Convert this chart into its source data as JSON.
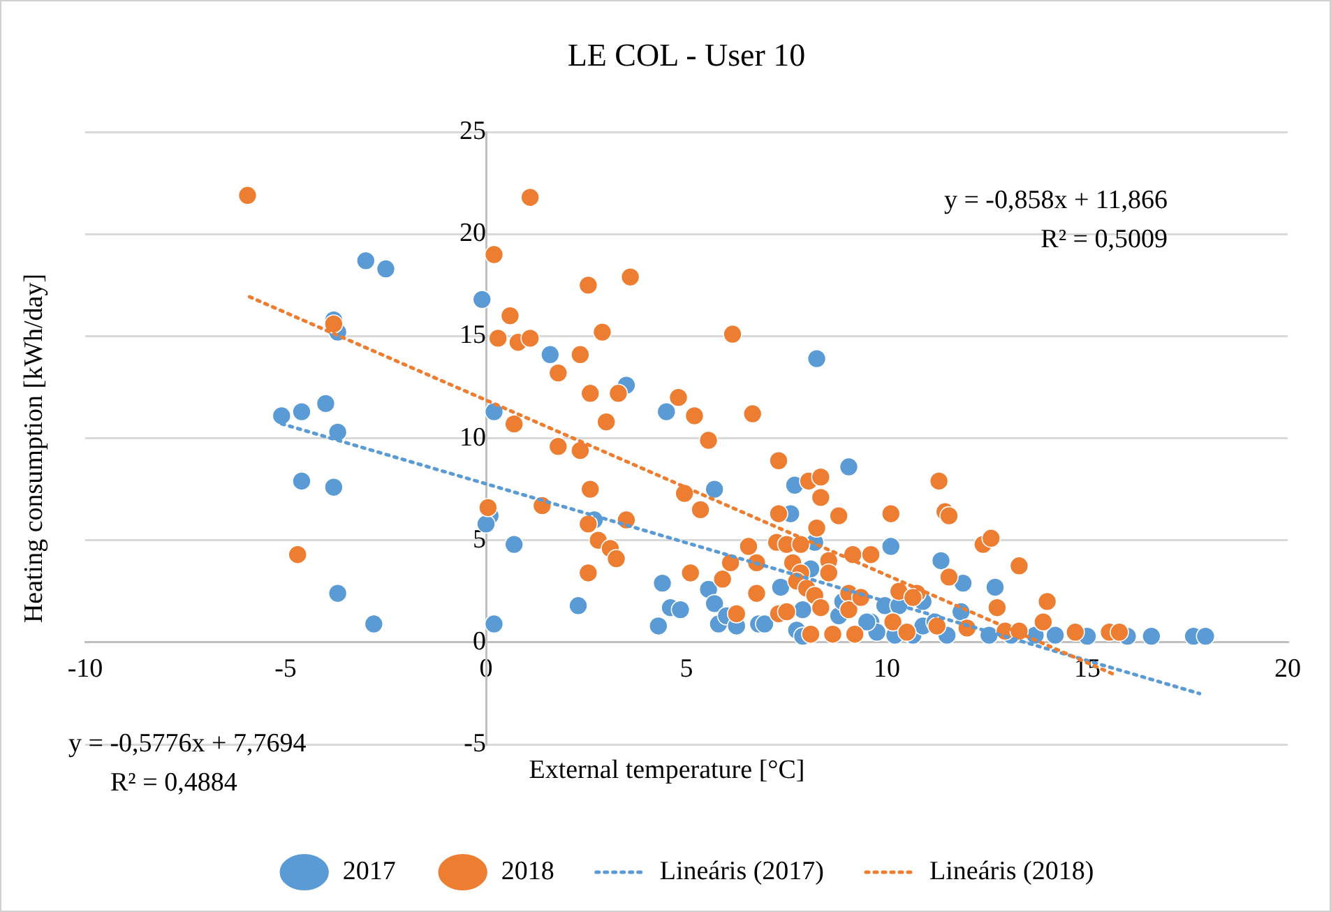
{
  "chart_data": {
    "type": "scatter",
    "title": "LE COL - User 10",
    "xlabel": "External temperature [°C]",
    "ylabel": "Heating consumption [kWh/day]",
    "xlim": [
      -10,
      20
    ],
    "xticks": [
      -10,
      -5,
      0,
      5,
      10,
      15,
      20
    ],
    "ylim": [
      -5,
      25
    ],
    "yticks": [
      -5,
      0,
      5,
      10,
      15,
      20,
      25
    ],
    "grid": "y",
    "legend": "bottom",
    "annotations": [
      "y = -0,858x + 11,866",
      "R² = 0,5009",
      "y = -0,5776x + 7,7694",
      "R² = 0,4884"
    ],
    "series": [
      {
        "name": "2017",
        "type": "scatter",
        "marker": "circle",
        "color": "#5b9bd5",
        "x": [
          -5.1,
          -4.6,
          -4.0,
          -3.7,
          -4.6,
          -3.8,
          -3.7,
          -2.8,
          -3.0,
          -2.5,
          -3.8,
          -3.7,
          -0.1,
          0.2,
          0.1,
          0.0,
          0.2,
          0.7,
          1.6,
          3.5,
          2.3,
          2.7,
          4.5,
          5.7,
          8.25,
          9.05,
          7.7,
          7.6,
          8.2,
          10.1,
          4.4,
          4.6,
          4.85,
          4.3,
          5.55,
          5.7,
          5.8,
          6.0,
          6.25,
          7.35,
          7.9,
          8.1,
          6.8,
          6.95,
          7.75,
          7.9,
          8.8,
          8.9,
          9.6,
          9.75,
          9.95,
          11.35,
          11.9,
          12.7,
          10.3,
          10.9,
          11.85,
          9.5,
          10.2,
          10.65,
          10.9,
          11.2,
          11.5,
          12.55,
          13.1,
          13.7,
          14.2,
          15.0,
          16.0,
          16.6,
          17.65,
          17.95
        ],
        "values": [
          11.1,
          11.3,
          11.7,
          10.3,
          7.9,
          7.6,
          2.4,
          0.9,
          18.7,
          18.3,
          15.8,
          15.2,
          16.8,
          11.3,
          6.2,
          5.8,
          0.9,
          4.8,
          14.1,
          12.6,
          1.8,
          6.0,
          11.3,
          7.5,
          13.9,
          8.6,
          7.7,
          6.3,
          4.9,
          4.7,
          2.9,
          1.7,
          1.6,
          0.8,
          2.6,
          1.9,
          0.9,
          1.3,
          0.8,
          2.7,
          1.6,
          3.6,
          0.9,
          0.9,
          0.6,
          0.3,
          1.3,
          2.0,
          1.0,
          0.5,
          1.8,
          4.0,
          2.9,
          2.7,
          1.8,
          2.0,
          1.5,
          1.0,
          0.35,
          0.35,
          0.8,
          1.0,
          0.35,
          0.35,
          0.35,
          0.35,
          0.35,
          0.3,
          0.3,
          0.3,
          0.3,
          0.3
        ]
      },
      {
        "name": "2018",
        "type": "scatter",
        "marker": "circle",
        "color": "#ed7d31",
        "x": [
          -5.95,
          -4.7,
          -3.8,
          0.05,
          0.2,
          1.1,
          0.6,
          0.3,
          0.8,
          1.1,
          1.8,
          0.7,
          1.8,
          2.35,
          2.55,
          3.6,
          2.9,
          2.35,
          2.6,
          3.3,
          3.0,
          1.4,
          2.6,
          2.55,
          3.5,
          2.8,
          3.1,
          3.25,
          2.55,
          4.8,
          5.2,
          5.55,
          6.15,
          6.65,
          4.95,
          5.35,
          5.1,
          5.9,
          6.1,
          6.55,
          6.75,
          6.75,
          6.25,
          7.3,
          7.3,
          8.05,
          8.35,
          8.35,
          8.8,
          8.25,
          7.25,
          7.5,
          7.85,
          7.65,
          7.85,
          7.75,
          8.0,
          8.2,
          8.35,
          8.55,
          8.55,
          9.15,
          9.6,
          9.05,
          9.05,
          9.35,
          7.3,
          7.5,
          8.1,
          8.65,
          9.2,
          10.1,
          11.3,
          11.45,
          11.55,
          12.4,
          12.6,
          13.3,
          14.0,
          13.9,
          12.75,
          11.55,
          10.3,
          10.75,
          10.15,
          10.65,
          11.25,
          12.0,
          10.5,
          12.95,
          13.3,
          14.7,
          15.55,
          15.8
        ],
        "values": [
          21.9,
          4.3,
          15.6,
          6.6,
          19.0,
          21.8,
          16.0,
          14.9,
          14.7,
          14.9,
          13.2,
          10.7,
          9.6,
          9.4,
          17.5,
          17.9,
          15.2,
          14.1,
          12.2,
          12.2,
          10.8,
          6.7,
          7.5,
          5.8,
          6.0,
          5.0,
          4.6,
          4.1,
          3.4,
          12.0,
          11.1,
          9.9,
          15.1,
          11.2,
          7.3,
          6.5,
          3.4,
          3.1,
          3.9,
          4.7,
          3.9,
          2.4,
          1.4,
          8.9,
          6.3,
          7.9,
          8.1,
          7.1,
          6.2,
          5.6,
          4.9,
          4.8,
          4.8,
          3.9,
          3.4,
          3.0,
          2.65,
          2.3,
          1.7,
          4.0,
          3.4,
          4.3,
          4.3,
          2.4,
          1.6,
          2.2,
          1.4,
          1.5,
          0.4,
          0.4,
          0.4,
          6.3,
          7.9,
          6.4,
          6.2,
          4.8,
          5.1,
          3.75,
          2.0,
          1.0,
          1.7,
          3.2,
          2.5,
          2.4,
          1.0,
          2.2,
          0.8,
          0.7,
          0.5,
          0.55,
          0.55,
          0.5,
          0.5,
          0.5
        ]
      },
      {
        "name": "Lineáris (2017)",
        "type": "line",
        "marker": "none",
        "line_style": "dotted",
        "color": "#5b9bd5",
        "x": [
          -5.1,
          17.8
        ],
        "values": [
          10.71,
          -2.51
        ]
      },
      {
        "name": "Lineáris (2018)",
        "type": "line",
        "marker": "none",
        "line_style": "dotted",
        "color": "#ed7d31",
        "x": [
          -5.9,
          15.7
        ],
        "values": [
          16.93,
          -1.6
        ]
      }
    ]
  }
}
